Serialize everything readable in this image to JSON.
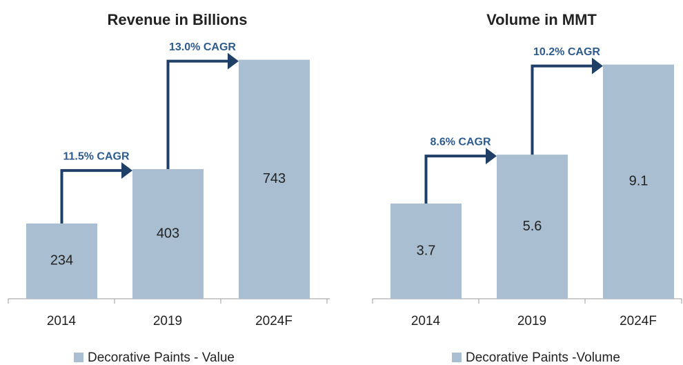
{
  "chart_data": [
    {
      "type": "bar",
      "title": "Revenue in Billions",
      "categories": [
        "2014",
        "2019",
        "2024F"
      ],
      "series": [
        {
          "name": "Decorative Paints - Value",
          "color": "#a9bfd1",
          "values": [
            234,
            403,
            743
          ]
        }
      ],
      "annotations": [
        "11.5% CAGR",
        "13.0% CAGR"
      ],
      "ylim": [
        0,
        800
      ]
    },
    {
      "type": "bar",
      "title": "Volume in MMT",
      "categories": [
        "2014",
        "2019",
        "2024F"
      ],
      "series": [
        {
          "name": "Decorative Paints -Volume",
          "color": "#a9bfd1",
          "values": [
            3.7,
            5.6,
            9.1
          ]
        }
      ],
      "annotations": [
        "8.6% CAGR",
        "10.2% CAGR"
      ],
      "ylim": [
        0,
        10
      ]
    }
  ]
}
